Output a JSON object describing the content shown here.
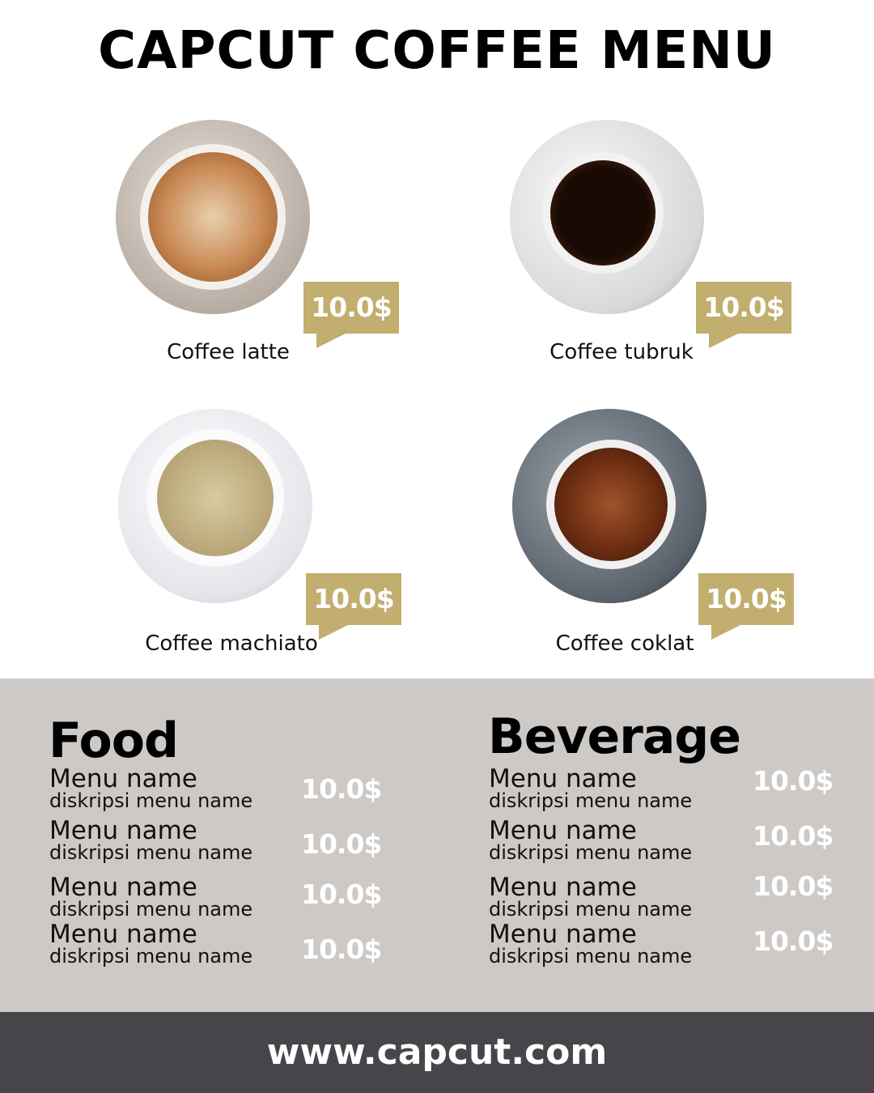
{
  "title": "CAPCUT COFFEE MENU",
  "colors": {
    "accent": "#c2ae6e",
    "band": "#cdc9c6",
    "footer": "#47454a"
  },
  "coffees": [
    {
      "name": "Coffee latte",
      "price": "10.0$"
    },
    {
      "name": "Coffee tubruk",
      "price": "10.0$"
    },
    {
      "name": "Coffee machiato",
      "price": "10.0$"
    },
    {
      "name": "Coffee coklat",
      "price": "10.0$"
    }
  ],
  "food": {
    "heading": "Food",
    "items": [
      {
        "name": "Menu name",
        "desc": "diskripsi menu name",
        "price": "10.0$"
      },
      {
        "name": "Menu name",
        "desc": "diskripsi menu name",
        "price": "10.0$"
      },
      {
        "name": "Menu name",
        "desc": "diskripsi menu name",
        "price": "10.0$"
      },
      {
        "name": "Menu name",
        "desc": "diskripsi menu name",
        "price": "10.0$"
      }
    ]
  },
  "beverage": {
    "heading": "Beverage",
    "items": [
      {
        "name": "Menu name",
        "desc": "diskripsi menu name",
        "price": "10.0$"
      },
      {
        "name": "Menu name",
        "desc": "diskripsi menu name",
        "price": "10.0$"
      },
      {
        "name": "Menu name",
        "desc": "diskripsi menu name",
        "price": "10.0$"
      },
      {
        "name": "Menu name",
        "desc": "diskripsi menu name",
        "price": "10.0$"
      }
    ]
  },
  "footer": {
    "url": "www.capcut.com"
  }
}
